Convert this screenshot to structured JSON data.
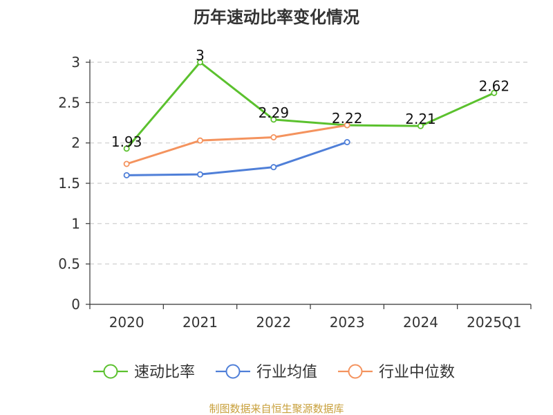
{
  "chart_data": {
    "type": "line",
    "title": "历年速动比率变化情况",
    "categories": [
      "2020",
      "2021",
      "2022",
      "2023",
      "2024",
      "2025Q1"
    ],
    "ylim": [
      0,
      3
    ],
    "yticks": [
      "0",
      "0.5",
      "1",
      "1.5",
      "2",
      "2.5",
      "3"
    ],
    "ytick_values": [
      0,
      0.5,
      1,
      1.5,
      2,
      2.5,
      3
    ],
    "grid": true,
    "legend_position": "bottom",
    "series": [
      {
        "name": "速动比率",
        "color": "#5bc12e",
        "values": [
          1.93,
          3,
          2.29,
          2.22,
          2.21,
          2.62
        ],
        "labels": [
          "1.93",
          "3",
          "2.29",
          "2.22",
          "2.21",
          "2.62"
        ]
      },
      {
        "name": "行业均值",
        "color": "#4f7fd8",
        "values": [
          1.6,
          1.61,
          1.7,
          2.01,
          null,
          null
        ]
      },
      {
        "name": "行业中位数",
        "color": "#f4935e",
        "values": [
          1.74,
          2.03,
          2.07,
          2.22,
          null,
          null
        ]
      }
    ]
  },
  "source_text": "制图数据来自恒生聚源数据库"
}
